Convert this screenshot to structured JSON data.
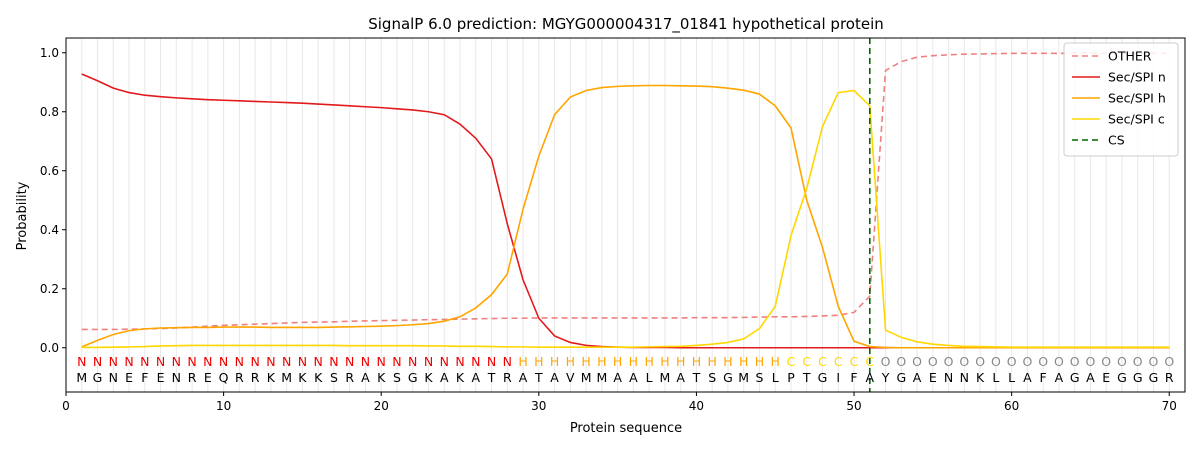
{
  "chart_data": {
    "type": "line",
    "title": "SignalP 6.0 prediction: MGYG000004317_01841 hypothetical protein",
    "xlabel": "Protein sequence",
    "ylabel": "Probability",
    "xlim": [
      0,
      71
    ],
    "ylim": [
      -0.15,
      1.05
    ],
    "x_ticks": [
      0,
      10,
      20,
      30,
      40,
      50,
      60,
      70
    ],
    "y_ticks": [
      0.0,
      0.2,
      0.4,
      0.6,
      0.8,
      1.0
    ],
    "x_tick_labels": [
      "0",
      "10",
      "20",
      "30",
      "40",
      "50",
      "60",
      "70"
    ],
    "y_tick_labels": [
      "0.0",
      "0.2",
      "0.4",
      "0.6",
      "0.8",
      "1.0"
    ],
    "grid": "vertical at each residue",
    "legend_position": "top-right",
    "sequence": "MGNEFENREQRRKMKKSRAKSGKAKATRATAVMMAALMATSGMSLPTGIFAYGAENNKLLAFAGAEGGGR",
    "labels": "NNNNNNNNNNNNNNNNNNNNNNNNNNNNHHHHHHHHHHHHHHHHHCCCCCCOOOOOOOOOOOOOOOOOOO",
    "label_colors": {
      "N": "#ee0000",
      "H": "#ffa500",
      "C": "#ffd700",
      "O": "#888888"
    },
    "cleavage_site": 51,
    "series": [
      {
        "name": "OTHER",
        "color": "#f08080",
        "dash": "dashed",
        "values": [
          0.062,
          0.062,
          0.062,
          0.063,
          0.064,
          0.065,
          0.067,
          0.07,
          0.073,
          0.076,
          0.078,
          0.08,
          0.082,
          0.084,
          0.086,
          0.087,
          0.088,
          0.09,
          0.091,
          0.092,
          0.093,
          0.094,
          0.095,
          0.096,
          0.097,
          0.098,
          0.099,
          0.1,
          0.1,
          0.101,
          0.101,
          0.101,
          0.101,
          0.101,
          0.101,
          0.101,
          0.101,
          0.101,
          0.101,
          0.102,
          0.102,
          0.102,
          0.103,
          0.104,
          0.105,
          0.105,
          0.106,
          0.108,
          0.11,
          0.12,
          0.175,
          0.94,
          0.97,
          0.985,
          0.99,
          0.993,
          0.995,
          0.996,
          0.997,
          0.998,
          0.998,
          0.998,
          0.998,
          0.998,
          0.998,
          0.998,
          0.998,
          0.998,
          0.998,
          0.998
        ]
      },
      {
        "name": "Sec/SPI n",
        "color": "#e31a1c",
        "dash": "solid",
        "values": [
          0.928,
          0.905,
          0.88,
          0.865,
          0.856,
          0.851,
          0.847,
          0.844,
          0.841,
          0.839,
          0.837,
          0.835,
          0.833,
          0.831,
          0.829,
          0.826,
          0.823,
          0.82,
          0.817,
          0.814,
          0.81,
          0.806,
          0.8,
          0.79,
          0.758,
          0.71,
          0.64,
          0.42,
          0.23,
          0.1,
          0.04,
          0.018,
          0.008,
          0.004,
          0.002,
          0.001,
          0.001,
          0.001,
          0.0,
          0.0,
          0.0,
          0.0,
          0.0,
          0.0,
          0.0,
          0.0,
          0.0,
          0.0,
          0.0,
          0.0,
          0.0,
          0.0,
          0.0,
          0.0,
          0.0,
          0.0,
          0.0,
          0.0,
          0.0,
          0.0,
          0.0,
          0.0,
          0.0,
          0.0,
          0.0,
          0.0,
          0.0,
          0.0,
          0.0,
          0.0
        ]
      },
      {
        "name": "Sec/SPI h",
        "color": "#ffa500",
        "dash": "solid",
        "values": [
          0.003,
          0.025,
          0.045,
          0.058,
          0.064,
          0.067,
          0.068,
          0.069,
          0.069,
          0.07,
          0.07,
          0.07,
          0.069,
          0.069,
          0.069,
          0.069,
          0.07,
          0.071,
          0.072,
          0.073,
          0.075,
          0.078,
          0.082,
          0.09,
          0.105,
          0.135,
          0.18,
          0.25,
          0.47,
          0.65,
          0.79,
          0.85,
          0.872,
          0.882,
          0.886,
          0.888,
          0.889,
          0.889,
          0.888,
          0.887,
          0.885,
          0.88,
          0.873,
          0.86,
          0.82,
          0.745,
          0.5,
          0.34,
          0.14,
          0.022,
          0.004,
          0.001,
          0.0,
          0.0,
          0.0,
          0.0,
          0.0,
          0.0,
          0.0,
          0.0,
          0.0,
          0.0,
          0.0,
          0.0,
          0.0,
          0.0,
          0.0,
          0.0,
          0.0,
          0.0
        ]
      },
      {
        "name": "Sec/SPI c",
        "color": "#ffd700",
        "dash": "solid",
        "values": [
          0.001,
          0.001,
          0.002,
          0.003,
          0.004,
          0.006,
          0.007,
          0.008,
          0.008,
          0.008,
          0.008,
          0.008,
          0.008,
          0.008,
          0.008,
          0.008,
          0.008,
          0.007,
          0.007,
          0.007,
          0.007,
          0.007,
          0.006,
          0.006,
          0.005,
          0.005,
          0.004,
          0.003,
          0.003,
          0.002,
          0.002,
          0.002,
          0.002,
          0.002,
          0.002,
          0.002,
          0.003,
          0.004,
          0.005,
          0.008,
          0.012,
          0.018,
          0.03,
          0.065,
          0.14,
          0.38,
          0.54,
          0.75,
          0.865,
          0.872,
          0.82,
          0.06,
          0.035,
          0.02,
          0.012,
          0.008,
          0.005,
          0.004,
          0.003,
          0.002,
          0.002,
          0.002,
          0.002,
          0.002,
          0.002,
          0.002,
          0.002,
          0.002,
          0.002,
          0.002
        ]
      },
      {
        "name": "CS",
        "color": "#006400",
        "dash": "dashed"
      }
    ]
  }
}
